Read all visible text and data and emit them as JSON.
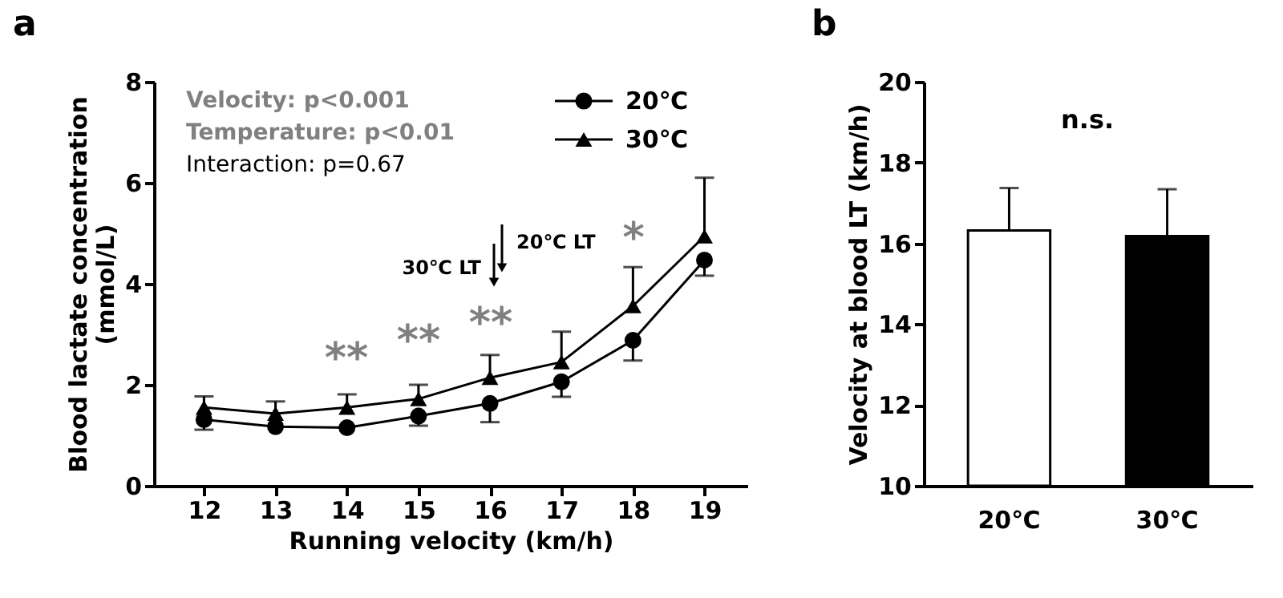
{
  "chart_data": [
    {
      "type": "line",
      "xlabel": "Running velocity (km/h)",
      "ylabel": "Blood lactate concentration\n(mmol/L)",
      "x": [
        12,
        13,
        14,
        15,
        16,
        17,
        18,
        19
      ],
      "xlim": [
        11.3,
        19.6
      ],
      "xticks": [
        12,
        13,
        14,
        15,
        16,
        17,
        18,
        19
      ],
      "ylim": [
        0,
        8
      ],
      "yticks": [
        0,
        2,
        4,
        6,
        8
      ],
      "grid": false,
      "legend": "top right",
      "line_style": "solid",
      "series": [
        {
          "name": "20℃",
          "color": "#000000",
          "marker": "circle",
          "values": [
            1.31,
            1.17,
            1.15,
            1.38,
            1.63,
            2.06,
            2.88,
            4.47
          ],
          "errors": [
            [
              1.11,
              1.31
            ],
            null,
            null,
            [
              1.19,
              1.38
            ],
            [
              1.26,
              1.63
            ],
            [
              1.76,
              2.06
            ],
            [
              2.48,
              2.88
            ],
            [
              4.16,
              4.47
            ]
          ]
        },
        {
          "name": "30℃",
          "color": "#000000",
          "marker": "triangle",
          "values": [
            1.55,
            1.43,
            1.55,
            1.72,
            2.14,
            2.45,
            3.56,
            4.94
          ],
          "errors": [
            [
              1.55,
              1.77
            ],
            [
              1.43,
              1.67
            ],
            [
              1.55,
              1.81
            ],
            [
              1.72,
              2.0
            ],
            [
              2.14,
              2.59
            ],
            [
              2.45,
              3.05
            ],
            [
              3.56,
              4.33
            ],
            [
              4.94,
              6.1
            ]
          ]
        }
      ],
      "annotations": [
        "a",
        "Velocity: p<0.001",
        "Temperature: p<0.01",
        "Interaction: p=0.67",
        "**",
        "**",
        "**",
        "*",
        "30℃ LT",
        "20℃ LT"
      ]
    },
    {
      "type": "bar",
      "ylabel": "Velocity at blood LT (km/h)",
      "categories": [
        "20℃",
        "30℃"
      ],
      "values": [
        16.32,
        16.18
      ],
      "colors": [
        "#ffffff",
        "#000000"
      ],
      "errors": [
        [
          16.32,
          17.37
        ],
        [
          16.18,
          17.34
        ]
      ],
      "ylim": [
        10,
        20
      ],
      "yticks": [
        10,
        12,
        14,
        16,
        18,
        20
      ],
      "grid": false,
      "annotations": [
        "b",
        "n.s."
      ]
    }
  ]
}
